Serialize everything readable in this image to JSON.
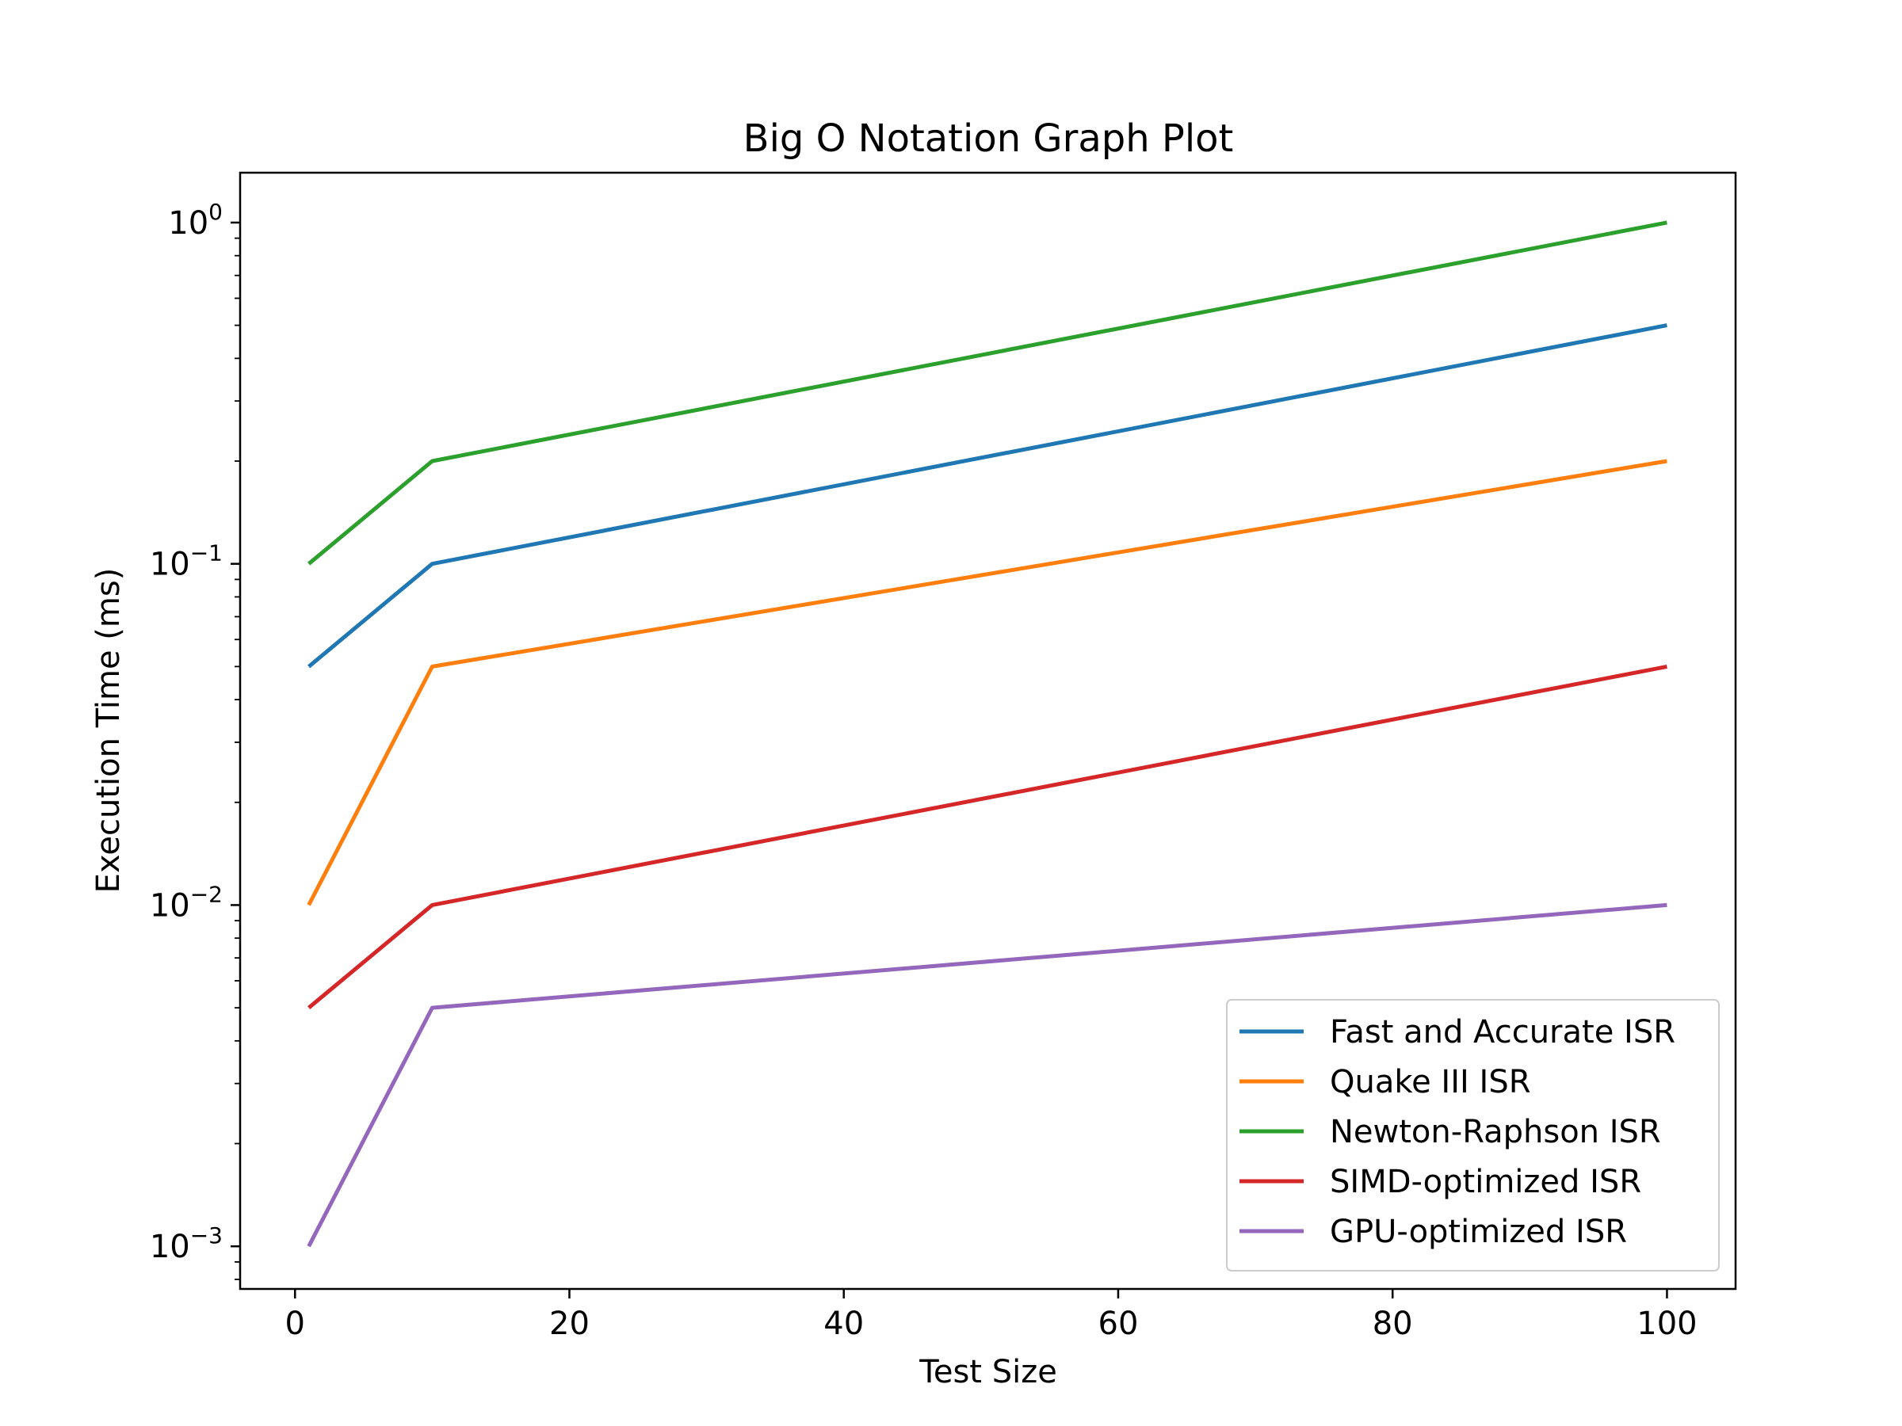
{
  "chart_data": {
    "type": "line",
    "title": "Big O Notation Graph Plot",
    "xlabel": "Test Size",
    "ylabel": "Execution Time (ms)",
    "x": [
      1,
      10,
      100
    ],
    "xlim": [
      -4,
      105
    ],
    "ylim": [
      0.00075,
      1.4
    ],
    "yscale": "log",
    "xticks": [
      0,
      20,
      40,
      60,
      80,
      100
    ],
    "xtick_labels": [
      "0",
      "20",
      "40",
      "60",
      "80",
      "100"
    ],
    "yticks": [
      0.001,
      0.01,
      0.1,
      1
    ],
    "ytick_labels": [
      {
        "base": "10",
        "exp": "−3"
      },
      {
        "base": "10",
        "exp": "−2"
      },
      {
        "base": "10",
        "exp": "−1"
      },
      {
        "base": "10",
        "exp": "0"
      }
    ],
    "grid": false,
    "legend_position": "lower-right",
    "series": [
      {
        "name": "Fast and Accurate ISR",
        "color": "#1f77b4",
        "values": [
          0.05,
          0.1,
          0.5
        ]
      },
      {
        "name": "Quake III ISR",
        "color": "#ff7f0e",
        "values": [
          0.01,
          0.05,
          0.2
        ]
      },
      {
        "name": "Newton-Raphson ISR",
        "color": "#2ca02c",
        "values": [
          0.1,
          0.2,
          1.0
        ]
      },
      {
        "name": "SIMD-optimized ISR",
        "color": "#d62728",
        "values": [
          0.005,
          0.01,
          0.05
        ]
      },
      {
        "name": "GPU-optimized ISR",
        "color": "#9467bd",
        "values": [
          0.001,
          0.005,
          0.01
        ]
      }
    ]
  }
}
